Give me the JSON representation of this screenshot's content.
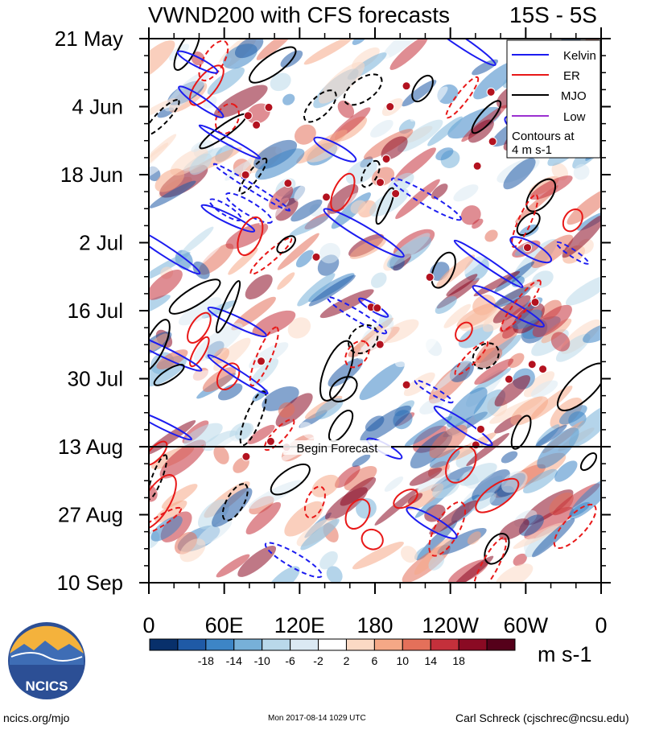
{
  "chart_data": {
    "type": "heatmap",
    "title": "VWND200 with CFS forecasts",
    "region_label": "15S - 5S",
    "x_ticks": [
      "0",
      "60E",
      "120E",
      "180",
      "120W",
      "60W",
      "0"
    ],
    "y_ticks": [
      "21 May",
      "4 Jun",
      "18 Jun",
      "2 Jul",
      "16 Jul",
      "30 Jul",
      "13 Aug",
      "27 Aug",
      "10 Sep"
    ],
    "forecast_label": "Begin Forecast",
    "forecast_start": "13 Aug",
    "legend": {
      "entries": [
        {
          "name": "Kelvin",
          "color": "#1c1cf0"
        },
        {
          "name": "ER",
          "color": "#e81818"
        },
        {
          "name": "MJO",
          "color": "#000000"
        },
        {
          "name": "Low",
          "color": "#9b30d0"
        }
      ],
      "note": "Contours at 4 m s-1",
      "placement": "top-right"
    },
    "colorbar": {
      "labels": [
        "-18",
        "-14",
        "-10",
        "-6",
        "-2",
        "2",
        "6",
        "10",
        "14",
        "18"
      ],
      "colors": [
        "#08306b",
        "#1f5aa6",
        "#3d85c6",
        "#77b0d8",
        "#b9d8ea",
        "#dbe9f3",
        "#ffffff",
        "#fbd9c4",
        "#f5a886",
        "#e4705a",
        "#c4303b",
        "#8a0a23",
        "#55001a"
      ],
      "unit": "m s-1"
    }
  },
  "branding": {
    "logo_text": "NCICS",
    "site": "ncics.org/mjo",
    "timestamp": "Mon 2017-08-14 1029 UTC",
    "credit": "Carl Schreck (cjschrec@ncsu.edu)"
  }
}
